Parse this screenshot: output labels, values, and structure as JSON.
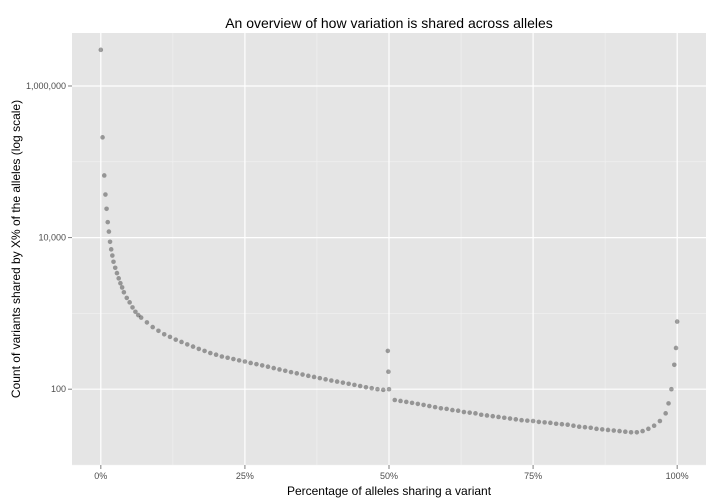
{
  "chart_data": {
    "type": "scatter",
    "title": "An overview of how variation is shared across alleles",
    "xlabel": "Percentage of alleles sharing a variant",
    "ylabel": "Count of variants shared by X% of the alleles (log scale)",
    "x_scale": "linear",
    "y_scale": "log10",
    "xlim": [
      -0.05,
      1.05
    ],
    "ylim": [
      10,
      5000000
    ],
    "x_ticks": [
      {
        "value": 0,
        "label": "0%"
      },
      {
        "value": 0.25,
        "label": "25%"
      },
      {
        "value": 0.5,
        "label": "50%"
      },
      {
        "value": 0.75,
        "label": "75%"
      },
      {
        "value": 1,
        "label": "100%"
      }
    ],
    "y_ticks": [
      {
        "value": 100,
        "label": "100"
      },
      {
        "value": 10000,
        "label": "10,000"
      },
      {
        "value": 1000000,
        "label": "1,000,000"
      }
    ],
    "grid": true,
    "point_color": "#000000",
    "point_opacity": 0.35,
    "points": [
      [
        0.0,
        3000000
      ],
      [
        0.003,
        210000
      ],
      [
        0.006,
        66000
      ],
      [
        0.008,
        37000
      ],
      [
        0.01,
        24000
      ],
      [
        0.012,
        16000
      ],
      [
        0.014,
        12000
      ],
      [
        0.016,
        8800
      ],
      [
        0.018,
        7000
      ],
      [
        0.02,
        5800
      ],
      [
        0.022,
        4800
      ],
      [
        0.025,
        4000
      ],
      [
        0.028,
        3400
      ],
      [
        0.031,
        2900
      ],
      [
        0.034,
        2500
      ],
      [
        0.037,
        2200
      ],
      [
        0.04,
        1900
      ],
      [
        0.045,
        1600
      ],
      [
        0.05,
        1400
      ],
      [
        0.055,
        1200
      ],
      [
        0.06,
        1050
      ],
      [
        0.065,
        950
      ],
      [
        0.07,
        880
      ],
      [
        0.08,
        760
      ],
      [
        0.09,
        660
      ],
      [
        0.1,
        590
      ],
      [
        0.11,
        530
      ],
      [
        0.12,
        490
      ],
      [
        0.13,
        450
      ],
      [
        0.14,
        420
      ],
      [
        0.15,
        390
      ],
      [
        0.16,
        365
      ],
      [
        0.17,
        340
      ],
      [
        0.18,
        320
      ],
      [
        0.19,
        300
      ],
      [
        0.2,
        285
      ],
      [
        0.21,
        270
      ],
      [
        0.22,
        260
      ],
      [
        0.23,
        250
      ],
      [
        0.24,
        240
      ],
      [
        0.25,
        232
      ],
      [
        0.26,
        222
      ],
      [
        0.27,
        214
      ],
      [
        0.28,
        206
      ],
      [
        0.29,
        198
      ],
      [
        0.3,
        190
      ],
      [
        0.31,
        182
      ],
      [
        0.32,
        175
      ],
      [
        0.33,
        168
      ],
      [
        0.34,
        162
      ],
      [
        0.35,
        156
      ],
      [
        0.36,
        150
      ],
      [
        0.37,
        145
      ],
      [
        0.38,
        140
      ],
      [
        0.39,
        135
      ],
      [
        0.4,
        130
      ],
      [
        0.41,
        126
      ],
      [
        0.42,
        122
      ],
      [
        0.43,
        118
      ],
      [
        0.44,
        114
      ],
      [
        0.45,
        110
      ],
      [
        0.46,
        106
      ],
      [
        0.47,
        103
      ],
      [
        0.48,
        100
      ],
      [
        0.49,
        98
      ],
      [
        0.498,
        320
      ],
      [
        0.499,
        170
      ],
      [
        0.5,
        100
      ],
      [
        0.51,
        72
      ],
      [
        0.52,
        70
      ],
      [
        0.53,
        68
      ],
      [
        0.54,
        66
      ],
      [
        0.55,
        64
      ],
      [
        0.56,
        62
      ],
      [
        0.57,
        60
      ],
      [
        0.58,
        58
      ],
      [
        0.59,
        56
      ],
      [
        0.6,
        55
      ],
      [
        0.61,
        53
      ],
      [
        0.62,
        52
      ],
      [
        0.63,
        50
      ],
      [
        0.64,
        49
      ],
      [
        0.65,
        48
      ],
      [
        0.66,
        46
      ],
      [
        0.67,
        45
      ],
      [
        0.68,
        44
      ],
      [
        0.69,
        43
      ],
      [
        0.7,
        42
      ],
      [
        0.71,
        41
      ],
      [
        0.72,
        40
      ],
      [
        0.73,
        39
      ],
      [
        0.74,
        38.5
      ],
      [
        0.75,
        38
      ],
      [
        0.76,
        37
      ],
      [
        0.77,
        36.5
      ],
      [
        0.78,
        36
      ],
      [
        0.79,
        35
      ],
      [
        0.8,
        34.5
      ],
      [
        0.81,
        34
      ],
      [
        0.82,
        33
      ],
      [
        0.83,
        32
      ],
      [
        0.84,
        31.5
      ],
      [
        0.85,
        31
      ],
      [
        0.86,
        30
      ],
      [
        0.87,
        29.5
      ],
      [
        0.88,
        29
      ],
      [
        0.89,
        28.5
      ],
      [
        0.9,
        28
      ],
      [
        0.91,
        27.5
      ],
      [
        0.92,
        27
      ],
      [
        0.93,
        27
      ],
      [
        0.94,
        28
      ],
      [
        0.95,
        30
      ],
      [
        0.96,
        33
      ],
      [
        0.97,
        38
      ],
      [
        0.98,
        48
      ],
      [
        0.985,
        65
      ],
      [
        0.99,
        100
      ],
      [
        0.995,
        210
      ],
      [
        0.998,
        350
      ],
      [
        1.0,
        780
      ]
    ]
  }
}
